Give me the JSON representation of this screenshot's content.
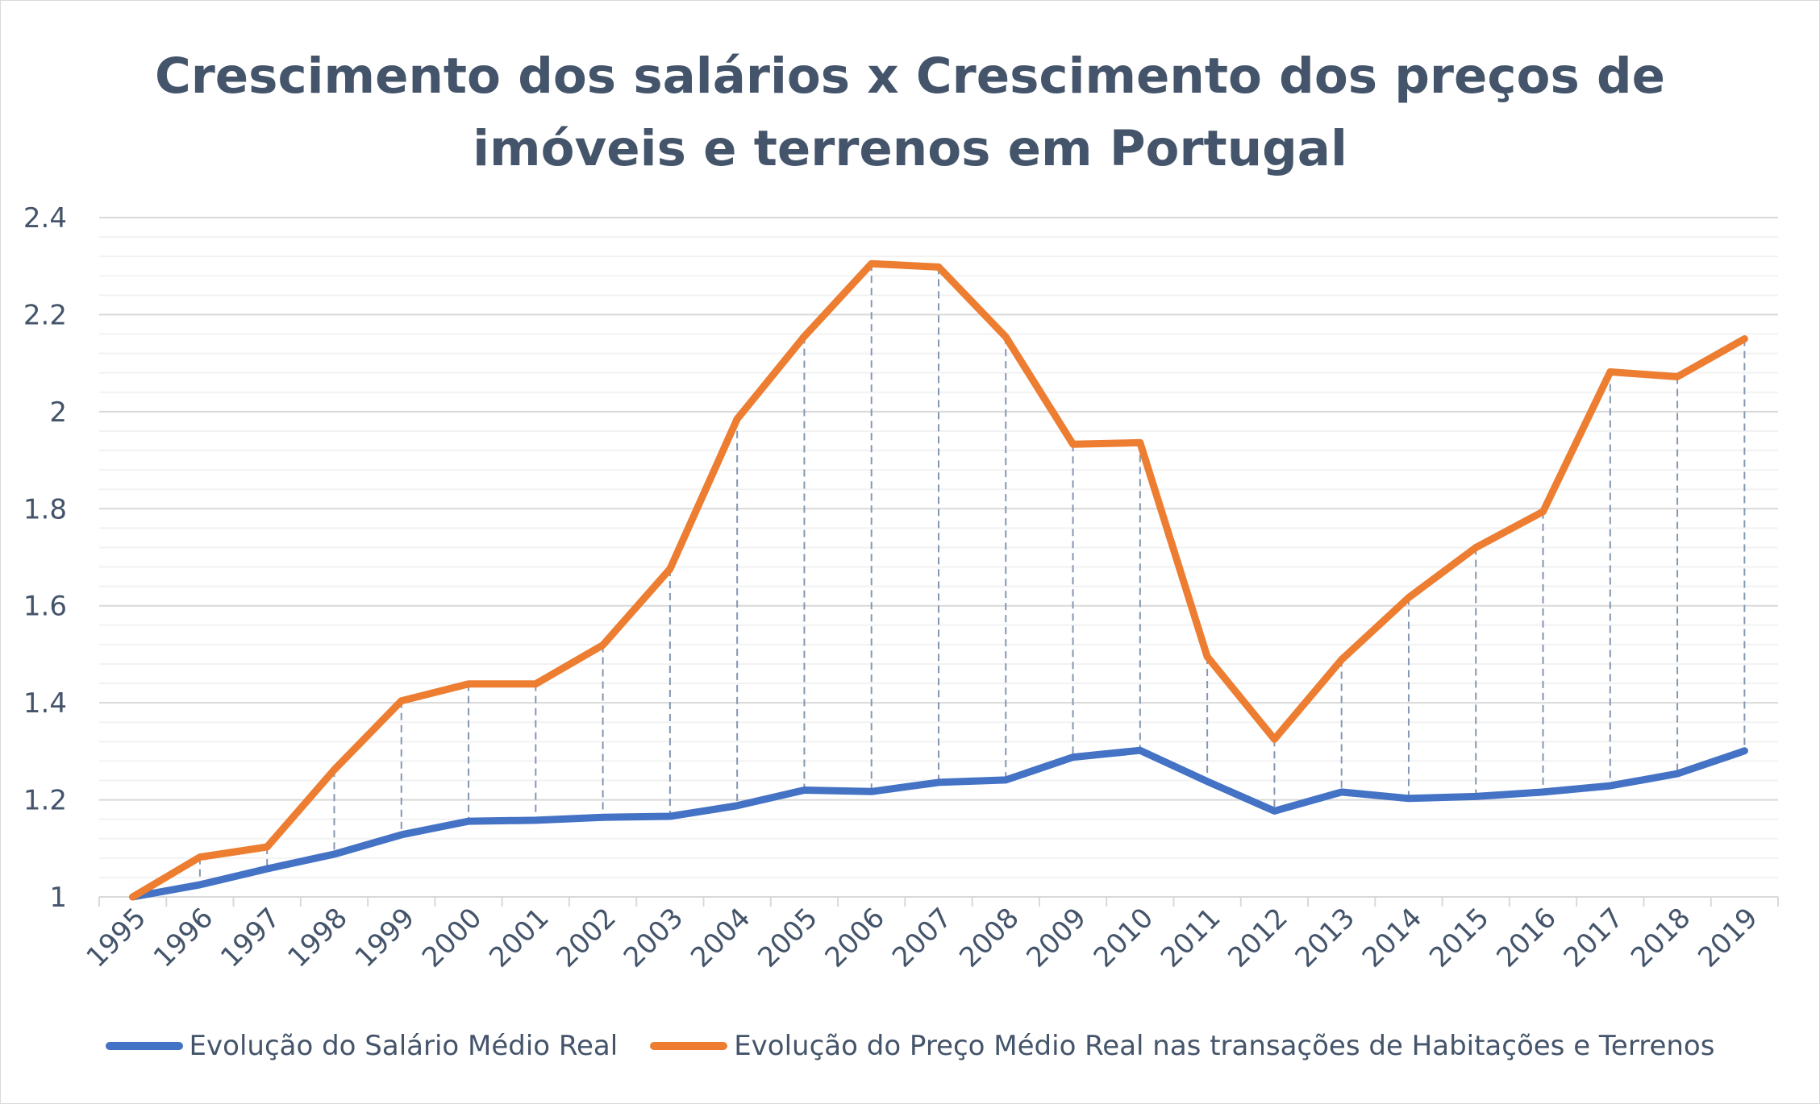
{
  "chart_data": {
    "type": "line",
    "title_lines": [
      "Crescimento dos salários x Crescimento dos preços de",
      "imóveis e terrenos em Portugal"
    ],
    "xlabel": "",
    "ylabel": "",
    "categories": [
      "1995",
      "1996",
      "1997",
      "1998",
      "1999",
      "2000",
      "2001",
      "2002",
      "2003",
      "2004",
      "2005",
      "2006",
      "2007",
      "2008",
      "2009",
      "2010",
      "2011",
      "2012",
      "2013",
      "2014",
      "2015",
      "2016",
      "2017",
      "2018",
      "2019"
    ],
    "ylim": [
      1,
      2.4
    ],
    "yticks": [
      "1",
      "1.2",
      "1.4",
      "1.6",
      "1.8",
      "2",
      "2.2",
      "2.4"
    ],
    "grid": true,
    "drop_lines": true,
    "legend_position": "bottom",
    "series": [
      {
        "name": "Evolução do Salário Médio Real",
        "color": "#4472c4",
        "values": [
          1.0,
          1.025,
          1.058,
          1.088,
          1.128,
          1.156,
          1.158,
          1.164,
          1.166,
          1.188,
          1.22,
          1.217,
          1.236,
          1.241,
          1.288,
          1.302,
          1.238,
          1.177,
          1.216,
          1.203,
          1.207,
          1.216,
          1.229,
          1.254,
          1.301
        ]
      },
      {
        "name": "Evolução do Preço Médio Real nas transações de Habitações e Terrenos",
        "color": "#ed7d31",
        "values": [
          1.0,
          1.082,
          1.103,
          1.262,
          1.404,
          1.439,
          1.439,
          1.519,
          1.676,
          1.985,
          2.155,
          2.305,
          2.298,
          2.154,
          1.933,
          1.936,
          1.495,
          1.325,
          1.489,
          1.617,
          1.72,
          1.794,
          2.082,
          2.072,
          2.15
        ]
      }
    ]
  }
}
